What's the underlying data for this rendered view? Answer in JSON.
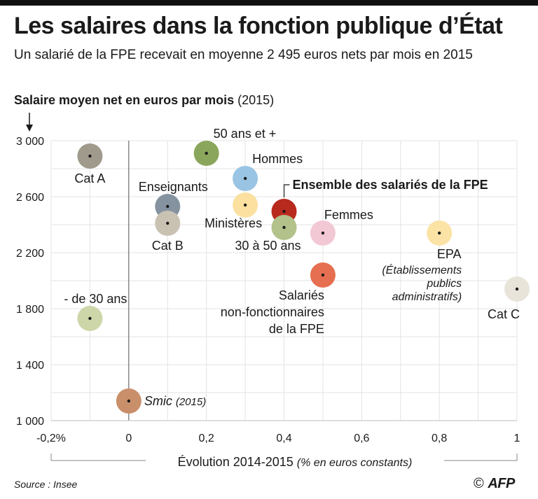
{
  "header": {
    "title": "Les salaires dans la fonction publique d’État",
    "subtitle": "Un salarié de la FPE recevait en moyenne 2 495 euros nets par mois en 2015"
  },
  "y_axis_title": {
    "main": "Salaire moyen net en euros par mois",
    "suffix": "(2015)"
  },
  "x_axis_title": {
    "main": "Évolution  2014-2015",
    "suffix": "(% en euros constants)"
  },
  "footer": {
    "source": "Source : Insee",
    "copyright": "©",
    "logo": "AFP"
  },
  "chart_data": {
    "type": "scatter",
    "title": "Les salaires dans la fonction publique d’État",
    "xlabel": "Évolution 2014-2015 (% en euros constants)",
    "ylabel": "Salaire moyen net en euros par mois (2015)",
    "xlim": [
      -0.2,
      1.0
    ],
    "ylim": [
      1000,
      3000
    ],
    "grid": true,
    "x_ticks": [
      {
        "value": -0.2,
        "label": "-0,2%"
      },
      {
        "value": 0,
        "label": "0"
      },
      {
        "value": 0.2,
        "label": "0,2"
      },
      {
        "value": 0.4,
        "label": "0,4"
      },
      {
        "value": 0.6,
        "label": "0,6"
      },
      {
        "value": 0.8,
        "label": "0,8"
      },
      {
        "value": 1.0,
        "label": "1"
      }
    ],
    "y_ticks": [
      {
        "value": 1000,
        "label": "1 000"
      },
      {
        "value": 1400,
        "label": "1 400"
      },
      {
        "value": 1800,
        "label": "1 800"
      },
      {
        "value": 2200,
        "label": "2 200"
      },
      {
        "value": 2600,
        "label": "2 600"
      },
      {
        "value": 3000,
        "label": "3 000"
      }
    ],
    "points": [
      {
        "key": "cat-a",
        "label": "Cat A",
        "x": -0.1,
        "y": 2890,
        "color": "#a09a8c",
        "labelpos": "below"
      },
      {
        "key": "50-ans-et-plus",
        "label": "50 ans et +",
        "x": 0.2,
        "y": 2910,
        "color": "#8aa65c",
        "labelpos": "above-right"
      },
      {
        "key": "hommes",
        "label": "Hommes",
        "x": 0.3,
        "y": 2730,
        "color": "#99c4e4",
        "labelpos": "above-right"
      },
      {
        "key": "enseignants",
        "label": "Enseignants",
        "x": 0.1,
        "y": 2530,
        "color": "#8593a0",
        "labelpos": "above"
      },
      {
        "key": "ministeres",
        "label": "Ministères",
        "x": 0.3,
        "y": 2540,
        "color": "#fbe0a0",
        "labelpos": "below-left"
      },
      {
        "key": "ensemble",
        "label": "Ensemble des salariés de la FPE",
        "x": 0.4,
        "y": 2495,
        "color": "#b8291e",
        "labelpos": "callout",
        "bold": true
      },
      {
        "key": "cat-b",
        "label": "Cat B",
        "x": 0.1,
        "y": 2410,
        "color": "#c9c2b3",
        "labelpos": "below"
      },
      {
        "key": "30-a-50-ans",
        "label": "30 à 50 ans",
        "x": 0.4,
        "y": 2380,
        "color": "#b2c28a",
        "labelpos": "below-left"
      },
      {
        "key": "femmes",
        "label": "Femmes",
        "x": 0.5,
        "y": 2340,
        "color": "#f2c8d4",
        "labelpos": "above-right"
      },
      {
        "key": "epa",
        "label": "EPA",
        "x": 0.8,
        "y": 2340,
        "color": "#fbe3a6",
        "labelpos": "below",
        "sublabel": [
          "(Établissements",
          "publics",
          "administratifs)"
        ]
      },
      {
        "key": "salaries-non-fonctionnaires",
        "label": "Salariés",
        "x": 0.5,
        "y": 2040,
        "color": "#e56f50",
        "labelpos": "below-left",
        "extra": [
          "non-fonctionnaires",
          "de la FPE"
        ]
      },
      {
        "key": "cat-c",
        "label": "Cat C",
        "x": 1.0,
        "y": 1940,
        "color": "#e8e4da",
        "labelpos": "below-left"
      },
      {
        "key": "moins-de-30-ans",
        "label": "- de 30 ans",
        "x": -0.1,
        "y": 1730,
        "color": "#ccd6a8",
        "labelpos": "above"
      },
      {
        "key": "smic",
        "label": "Smic",
        "x": 0.0,
        "y": 1140,
        "color": "#c98f6a",
        "labelpos": "right",
        "italic": true,
        "label_suffix": "(2015)"
      }
    ]
  }
}
